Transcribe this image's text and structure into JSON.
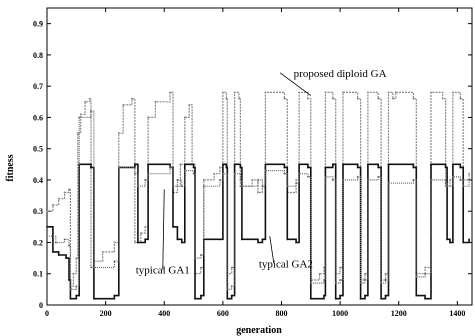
{
  "chart_data": {
    "type": "line",
    "xlabel": "generation",
    "ylabel": "fitness",
    "xlim": [
      0,
      1450
    ],
    "ylim": [
      0,
      0.95
    ],
    "x_ticks": [
      0,
      200,
      400,
      600,
      800,
      1000,
      1200,
      1400
    ],
    "y_ticks": [
      0,
      0.1,
      0.2,
      0.3,
      0.4,
      0.5,
      0.6,
      0.7,
      0.8,
      0.9
    ],
    "grid": false,
    "legend": "none",
    "series": [
      {
        "name": "proposed diploid GA",
        "color": "#888888",
        "points": [
          [
            0,
            0.3
          ],
          [
            20,
            0.32
          ],
          [
            40,
            0.34
          ],
          [
            60,
            0.36
          ],
          [
            75,
            0.37
          ],
          [
            80,
            0.06
          ],
          [
            90,
            0.1
          ],
          [
            100,
            0.15
          ],
          [
            105,
            0.55
          ],
          [
            115,
            0.61
          ],
          [
            130,
            0.65
          ],
          [
            145,
            0.66
          ],
          [
            150,
            0.12
          ],
          [
            160,
            0.14
          ],
          [
            190,
            0.17
          ],
          [
            230,
            0.2
          ],
          [
            245,
            0.55
          ],
          [
            260,
            0.64
          ],
          [
            290,
            0.66
          ],
          [
            300,
            0.2
          ],
          [
            320,
            0.23
          ],
          [
            335,
            0.25
          ],
          [
            345,
            0.6
          ],
          [
            370,
            0.65
          ],
          [
            420,
            0.68
          ],
          [
            430,
            0.36
          ],
          [
            445,
            0.38
          ],
          [
            455,
            0.45
          ],
          [
            470,
            0.6
          ],
          [
            485,
            0.64
          ],
          [
            495,
            0.45
          ],
          [
            505,
            0.1
          ],
          [
            525,
            0.12
          ],
          [
            535,
            0.4
          ],
          [
            570,
            0.42
          ],
          [
            590,
            0.44
          ],
          [
            600,
            0.68
          ],
          [
            612,
            0.66
          ],
          [
            615,
            0.1
          ],
          [
            630,
            0.12
          ],
          [
            640,
            0.68
          ],
          [
            655,
            0.66
          ],
          [
            660,
            0.38
          ],
          [
            700,
            0.4
          ],
          [
            720,
            0.36
          ],
          [
            735,
            0.38
          ],
          [
            745,
            0.68
          ],
          [
            810,
            0.66
          ],
          [
            820,
            0.36
          ],
          [
            850,
            0.4
          ],
          [
            860,
            0.68
          ],
          [
            890,
            0.66
          ],
          [
            900,
            0.08
          ],
          [
            930,
            0.1
          ],
          [
            945,
            0.12
          ],
          [
            950,
            0.68
          ],
          [
            975,
            0.66
          ],
          [
            985,
            0.1
          ],
          [
            1000,
            0.12
          ],
          [
            1010,
            0.68
          ],
          [
            1060,
            0.66
          ],
          [
            1070,
            0.08
          ],
          [
            1085,
            0.1
          ],
          [
            1095,
            0.68
          ],
          [
            1130,
            0.66
          ],
          [
            1140,
            0.08
          ],
          [
            1155,
            0.1
          ],
          [
            1165,
            0.68
          ],
          [
            1180,
            0.66
          ],
          [
            1190,
            0.68
          ],
          [
            1250,
            0.66
          ],
          [
            1260,
            0.1
          ],
          [
            1290,
            0.12
          ],
          [
            1310,
            0.68
          ],
          [
            1350,
            0.66
          ],
          [
            1360,
            0.38
          ],
          [
            1375,
            0.4
          ],
          [
            1385,
            0.68
          ],
          [
            1410,
            0.66
          ],
          [
            1420,
            0.4
          ],
          [
            1440,
            0.42
          ]
        ]
      },
      {
        "name": "typical GA1",
        "color": "#111111",
        "points": [
          [
            0,
            0.25
          ],
          [
            20,
            0.17
          ],
          [
            40,
            0.16
          ],
          [
            65,
            0.15
          ],
          [
            75,
            0.08
          ],
          [
            80,
            0.02
          ],
          [
            100,
            0.03
          ],
          [
            110,
            0.45
          ],
          [
            150,
            0.44
          ],
          [
            160,
            0.02
          ],
          [
            230,
            0.03
          ],
          [
            245,
            0.44
          ],
          [
            300,
            0.45
          ],
          [
            310,
            0.2
          ],
          [
            335,
            0.21
          ],
          [
            345,
            0.45
          ],
          [
            420,
            0.44
          ],
          [
            430,
            0.25
          ],
          [
            445,
            0.21
          ],
          [
            460,
            0.2
          ],
          [
            470,
            0.45
          ],
          [
            500,
            0.44
          ],
          [
            505,
            0.02
          ],
          [
            525,
            0.03
          ],
          [
            535,
            0.21
          ],
          [
            590,
            0.21
          ],
          [
            600,
            0.45
          ],
          [
            612,
            0.44
          ],
          [
            615,
            0.02
          ],
          [
            630,
            0.03
          ],
          [
            640,
            0.45
          ],
          [
            660,
            0.44
          ],
          [
            665,
            0.21
          ],
          [
            720,
            0.2
          ],
          [
            735,
            0.21
          ],
          [
            745,
            0.45
          ],
          [
            810,
            0.44
          ],
          [
            820,
            0.21
          ],
          [
            850,
            0.2
          ],
          [
            860,
            0.45
          ],
          [
            890,
            0.44
          ],
          [
            900,
            0.02
          ],
          [
            945,
            0.03
          ],
          [
            950,
            0.44
          ],
          [
            975,
            0.45
          ],
          [
            985,
            0.02
          ],
          [
            1000,
            0.03
          ],
          [
            1010,
            0.45
          ],
          [
            1060,
            0.44
          ],
          [
            1070,
            0.02
          ],
          [
            1085,
            0.03
          ],
          [
            1095,
            0.45
          ],
          [
            1130,
            0.44
          ],
          [
            1140,
            0.02
          ],
          [
            1155,
            0.03
          ],
          [
            1165,
            0.45
          ],
          [
            1250,
            0.44
          ],
          [
            1260,
            0.03
          ],
          [
            1290,
            0.02
          ],
          [
            1310,
            0.45
          ],
          [
            1360,
            0.44
          ],
          [
            1365,
            0.21
          ],
          [
            1375,
            0.2
          ],
          [
            1385,
            0.45
          ],
          [
            1410,
            0.44
          ],
          [
            1420,
            0.2
          ],
          [
            1440,
            0.21
          ]
        ]
      },
      {
        "name": "typical GA2",
        "color": "#666666",
        "points": [
          [
            0,
            0.22
          ],
          [
            30,
            0.2
          ],
          [
            60,
            0.21
          ],
          [
            75,
            0.19
          ],
          [
            80,
            0.05
          ],
          [
            100,
            0.06
          ],
          [
            110,
            0.6
          ],
          [
            150,
            0.62
          ],
          [
            160,
            0.12
          ],
          [
            230,
            0.14
          ],
          [
            245,
            0.44
          ],
          [
            300,
            0.42
          ],
          [
            310,
            0.38
          ],
          [
            335,
            0.4
          ],
          [
            345,
            0.42
          ],
          [
            420,
            0.44
          ],
          [
            430,
            0.38
          ],
          [
            445,
            0.4
          ],
          [
            460,
            0.38
          ],
          [
            470,
            0.43
          ],
          [
            500,
            0.42
          ],
          [
            505,
            0.15
          ],
          [
            525,
            0.16
          ],
          [
            535,
            0.38
          ],
          [
            590,
            0.4
          ],
          [
            600,
            0.42
          ],
          [
            615,
            0.05
          ],
          [
            630,
            0.06
          ],
          [
            640,
            0.42
          ],
          [
            660,
            0.4
          ],
          [
            665,
            0.38
          ],
          [
            720,
            0.4
          ],
          [
            735,
            0.38
          ],
          [
            745,
            0.43
          ],
          [
            810,
            0.42
          ],
          [
            820,
            0.38
          ],
          [
            850,
            0.39
          ],
          [
            860,
            0.42
          ],
          [
            890,
            0.41
          ],
          [
            900,
            0.07
          ],
          [
            945,
            0.08
          ],
          [
            950,
            0.41
          ],
          [
            975,
            0.4
          ],
          [
            985,
            0.07
          ],
          [
            1000,
            0.08
          ],
          [
            1010,
            0.4
          ],
          [
            1060,
            0.41
          ],
          [
            1070,
            0.07
          ],
          [
            1085,
            0.08
          ],
          [
            1095,
            0.4
          ],
          [
            1130,
            0.41
          ],
          [
            1140,
            0.07
          ],
          [
            1155,
            0.08
          ],
          [
            1165,
            0.39
          ],
          [
            1250,
            0.4
          ],
          [
            1260,
            0.09
          ],
          [
            1290,
            0.1
          ],
          [
            1310,
            0.4
          ],
          [
            1360,
            0.39
          ],
          [
            1365,
            0.38
          ],
          [
            1385,
            0.41
          ],
          [
            1410,
            0.4
          ],
          [
            1420,
            0.38
          ],
          [
            1440,
            0.4
          ]
        ]
      }
    ],
    "annotations": [
      {
        "text": "proposed diploid GA",
        "x": 1000,
        "y": 0.73,
        "target": [
          900,
          0.67
        ]
      },
      {
        "text": "typical GA1",
        "x": 395,
        "y": 0.1,
        "target": [
          400,
          0.37
        ]
      },
      {
        "text": "typical GA2",
        "x": 815,
        "y": 0.12,
        "target": [
          760,
          0.22
        ]
      }
    ]
  }
}
